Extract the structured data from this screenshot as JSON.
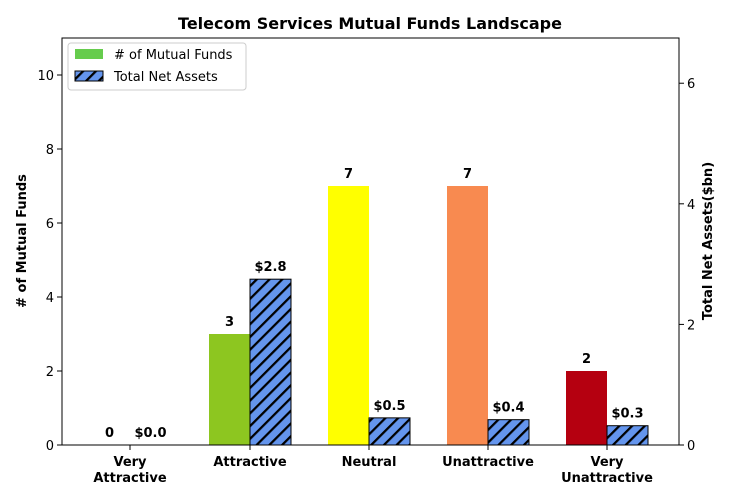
{
  "chart_data": {
    "type": "bar",
    "title": "Telecom Services Mutual Funds Landscape",
    "categories": [
      [
        "Very",
        "Attractive"
      ],
      [
        "Attractive"
      ],
      [
        "Neutral"
      ],
      [
        "Unattractive"
      ],
      [
        "Very",
        "Unattractive"
      ]
    ],
    "series": [
      {
        "name": "# of Mutual Funds",
        "axis": "left",
        "values": [
          0,
          3,
          7,
          7,
          2
        ],
        "labels": [
          "0",
          "3",
          "7",
          "7",
          "2"
        ],
        "colors": [
          "#8dc620",
          "#8dc620",
          "#ffff00",
          "#f88a50",
          "#b50010"
        ],
        "legend_color": "#66cc4d"
      },
      {
        "name": "Total Net Assets",
        "axis": "right",
        "values": [
          0.0,
          2.75,
          0.45,
          0.42,
          0.32
        ],
        "labels": [
          "$0.0",
          "$2.8",
          "$0.5",
          "$0.4",
          "$0.3"
        ],
        "color": "#6495ed",
        "hatch": "diagonal"
      }
    ],
    "ylabel_left": "# of Mutual Funds",
    "ylabel_right": "Total Net Assets($bn)",
    "ylim_left": [
      0,
      11
    ],
    "ylim_right": [
      0,
      6.75
    ],
    "yticks_left": [
      0,
      2,
      4,
      6,
      8,
      10
    ],
    "yticks_right": [
      0,
      2,
      4,
      6
    ],
    "legend_position": "top-left",
    "grid": false
  }
}
